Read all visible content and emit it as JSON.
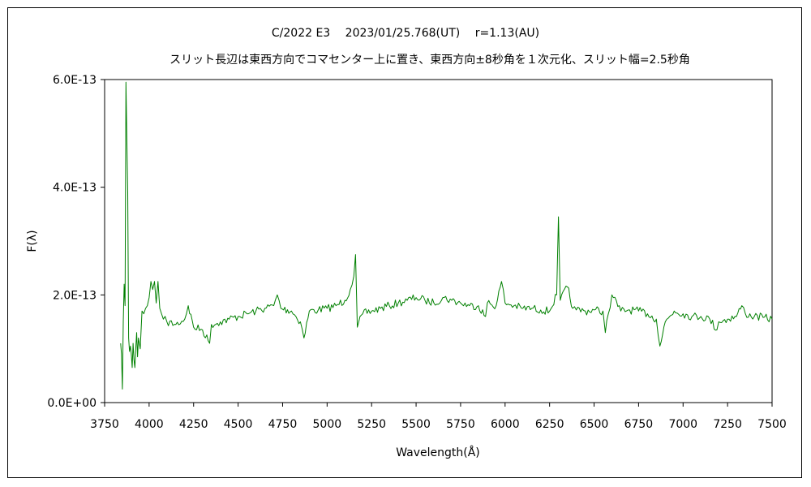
{
  "chart_data": {
    "type": "line",
    "title": "C/2022 E3　 2023/01/25.768(UT)　 r=1.13(AU)",
    "subtitle": "スリット長辺は東西方向でコマセンター上に置き、東西方向±8秒角を１次元化、スリット幅=2.5秒角",
    "xlabel": "Wavelength(Å)",
    "ylabel": "F(λ)",
    "xlim": [
      3750,
      7500
    ],
    "ylim": [
      0,
      6e-13
    ],
    "x_ticks": [
      3750,
      4000,
      4250,
      4500,
      4750,
      5000,
      5250,
      5500,
      5750,
      6000,
      6250,
      6500,
      6750,
      7000,
      7250,
      7500
    ],
    "x_tick_labels": [
      "3750",
      "4000",
      "4250",
      "4500",
      "4750",
      "5000",
      "5250",
      "5500",
      "5750",
      "6000",
      "6250",
      "6500",
      "6750",
      "7000",
      "7250",
      "7500"
    ],
    "y_ticks": [
      0,
      2e-13,
      4e-13,
      6e-13
    ],
    "y_tick_labels": [
      "0.0E+00",
      "2.0E-13",
      "4.0E-13",
      "6.0E-13"
    ],
    "grid": false,
    "legend": "none",
    "line_color": "#008000",
    "series": [
      {
        "name": "",
        "x": [
          3840,
          3845,
          3850,
          3855,
          3860,
          3865,
          3870,
          3875,
          3880,
          3885,
          3890,
          3895,
          3900,
          3905,
          3910,
          3915,
          3920,
          3925,
          3930,
          3935,
          3940,
          3950,
          3960,
          3970,
          3980,
          3990,
          4000,
          4010,
          4020,
          4030,
          4040,
          4050,
          4060,
          4070,
          4080,
          4100,
          4150,
          4200,
          4220,
          4250,
          4300,
          4340,
          4350,
          4400,
          4450,
          4500,
          4550,
          4600,
          4650,
          4700,
          4720,
          4740,
          4800,
          4850,
          4870,
          4900,
          4950,
          5000,
          5050,
          5100,
          5130,
          5150,
          5160,
          5170,
          5200,
          5250,
          5300,
          5350,
          5400,
          5450,
          5500,
          5550,
          5600,
          5650,
          5700,
          5750,
          5800,
          5850,
          5890,
          5900,
          5950,
          5980,
          6000,
          6050,
          6100,
          6150,
          6200,
          6250,
          6290,
          6300,
          6310,
          6350,
          6380,
          6400,
          6450,
          6500,
          6550,
          6563,
          6580,
          6600,
          6650,
          6700,
          6750,
          6800,
          6850,
          6870,
          6900,
          6950,
          7000,
          7050,
          7100,
          7150,
          7190,
          7200,
          7250,
          7300,
          7330,
          7350,
          7400,
          7450,
          7500
        ],
        "values": [
          1.1e-13,
          9e-14,
          2.5e-14,
          1.5e-13,
          2.2e-13,
          1.8e-13,
          5.95e-13,
          4.9e-13,
          3.9e-13,
          1.2e-13,
          9.5e-14,
          1.05e-13,
          9e-14,
          6.5e-14,
          1.1e-13,
          8e-14,
          6.5e-14,
          1e-13,
          1.3e-13,
          8.5e-14,
          1.2e-13,
          1e-13,
          1.7e-13,
          1.65e-13,
          1.75e-13,
          1.8e-13,
          1.95e-13,
          2.25e-13,
          2.1e-13,
          2.25e-13,
          1.85e-13,
          2.25e-13,
          1.75e-13,
          1.65e-13,
          1.55e-13,
          1.5e-13,
          1.45e-13,
          1.55e-13,
          1.8e-13,
          1.4e-13,
          1.35e-13,
          1.1e-13,
          1.45e-13,
          1.5e-13,
          1.55e-13,
          1.6e-13,
          1.65e-13,
          1.7e-13,
          1.75e-13,
          1.8e-13,
          2e-13,
          1.75e-13,
          1.7e-13,
          1.5e-13,
          1.2e-13,
          1.7e-13,
          1.72e-13,
          1.75e-13,
          1.8e-13,
          1.9e-13,
          2.1e-13,
          2.35e-13,
          2.75e-13,
          1.4e-13,
          1.65e-13,
          1.7e-13,
          1.75e-13,
          1.8e-13,
          1.85e-13,
          1.9e-13,
          1.95e-13,
          1.9e-13,
          1.85e-13,
          1.95e-13,
          1.9e-13,
          1.85e-13,
          1.8e-13,
          1.8e-13,
          1.6e-13,
          1.85e-13,
          1.8e-13,
          2.25e-13,
          1.85e-13,
          1.8e-13,
          1.75e-13,
          1.75e-13,
          1.72e-13,
          1.7e-13,
          2e-13,
          3.45e-13,
          1.9e-13,
          2.15e-13,
          1.75e-13,
          1.72e-13,
          1.7e-13,
          1.72e-13,
          1.7e-13,
          1.3e-13,
          1.65e-13,
          2e-13,
          1.7e-13,
          1.72e-13,
          1.7e-13,
          1.65e-13,
          1.55e-13,
          1.05e-13,
          1.5e-13,
          1.7e-13,
          1.65e-13,
          1.6e-13,
          1.6e-13,
          1.55e-13,
          1.35e-13,
          1.5e-13,
          1.55e-13,
          1.6e-13,
          1.8e-13,
          1.65e-13,
          1.6e-13,
          1.58e-13,
          1.55e-13
        ]
      }
    ]
  }
}
